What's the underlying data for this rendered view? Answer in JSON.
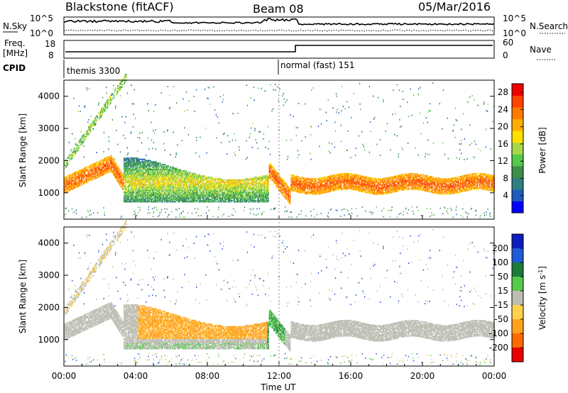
{
  "header": {
    "radar": "Blackstone (fitACF)",
    "beam": "Beam 08",
    "date": "05/Mar/2016"
  },
  "noise_panel": {
    "left_label": "N.Sky",
    "right_label": "N.Search",
    "left_ticks": [
      "10^5",
      "10^0"
    ],
    "right_ticks": [
      "10^5",
      "10^0"
    ]
  },
  "freq_panel": {
    "left_label_line1": "Freq.",
    "left_label_line2": "[MHz]",
    "left_ticks": [
      "18",
      "8"
    ],
    "right_label": "Nave",
    "right_ticks": [
      "60",
      "0"
    ]
  },
  "cpid": {
    "label": "CPID",
    "segments": [
      {
        "name": "themis 3300",
        "start_hour": 0
      },
      {
        "name": "normal (fast) 151",
        "start_hour": 12
      }
    ]
  },
  "x_axis": {
    "label": "Time UT",
    "range_hours": [
      0,
      24
    ],
    "ticks": [
      "00:00",
      "04:00",
      "08:00",
      "12:00",
      "16:00",
      "20:00",
      "00:00"
    ]
  },
  "chart_data": [
    {
      "type": "heatmap",
      "name": "power",
      "ylabel": "Slant Range [km]",
      "y_ticks": [
        1000,
        2000,
        3000,
        4000
      ],
      "ylim": [
        180,
        4500
      ],
      "colorbar": {
        "label": "Power [dB]",
        "ticks": [
          "4",
          "8",
          "12",
          "16",
          "20",
          "24",
          "28"
        ],
        "range": [
          0,
          30
        ],
        "colors": [
          "#0000ff",
          "#1e5dbd",
          "#2f7f7f",
          "#3b8f48",
          "#55c94a",
          "#a8d64a",
          "#ffe000",
          "#ffae00",
          "#ff7b00",
          "#ff4300",
          "#ee0000"
        ]
      }
    },
    {
      "type": "heatmap",
      "name": "velocity",
      "ylabel": "Slant Range [km]",
      "y_ticks": [
        1000,
        2000,
        3000,
        4000
      ],
      "ylim": [
        180,
        4500
      ],
      "colorbar": {
        "label": "Velocity [m s^-1]",
        "ticks": [
          "200",
          "100",
          "50",
          "15",
          "-15",
          "-50",
          "-100",
          "-200"
        ],
        "range": [
          -250,
          250
        ],
        "colors": [
          "#0b1dbb",
          "#1f5bd6",
          "#1e7a3a",
          "#55c94a",
          "#bdbdb4",
          "#ffd24d",
          "#ffa21e",
          "#ff6a00",
          "#e60000"
        ]
      }
    }
  ]
}
